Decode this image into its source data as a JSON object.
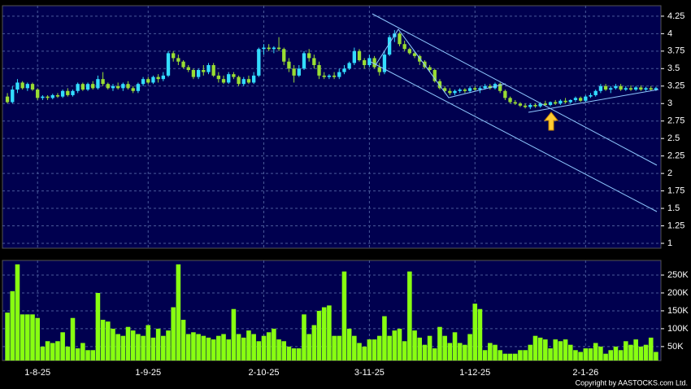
{
  "chart_data": {
    "type": "candlestick",
    "categories": [
      null,
      null,
      null,
      null,
      null,
      null,
      "1-8-25",
      null,
      null,
      null,
      null,
      null,
      null,
      null,
      null,
      null,
      null,
      null,
      null,
      null,
      null,
      null,
      null,
      null,
      null,
      null,
      null,
      null,
      "1-9-25",
      null,
      null,
      null,
      null,
      null,
      null,
      null,
      null,
      null,
      null,
      null,
      null,
      null,
      null,
      null,
      null,
      null,
      null,
      null,
      null,
      null,
      null,
      "2-10-25",
      null,
      null,
      null,
      null,
      null,
      null,
      null,
      null,
      null,
      null,
      null,
      null,
      null,
      null,
      null,
      null,
      null,
      null,
      null,
      null,
      "3-11-25",
      null,
      null,
      null,
      null,
      null,
      null,
      null,
      null,
      null,
      null,
      null,
      null,
      null,
      null,
      null,
      null,
      null,
      null,
      null,
      null,
      "1-12-25",
      null,
      null,
      null,
      null,
      null,
      null,
      null,
      null,
      null,
      null,
      null,
      null,
      null,
      null,
      null,
      null,
      null,
      null,
      null,
      null,
      null,
      "2-1-26",
      null,
      null,
      null,
      null,
      null,
      null,
      null,
      null,
      null,
      null,
      null,
      null,
      null,
      null
    ],
    "candles": [
      [
        3.1,
        3.15,
        3.0,
        3.02
      ],
      [
        3.02,
        3.25,
        3.0,
        3.2
      ],
      [
        3.2,
        3.35,
        3.15,
        3.3
      ],
      [
        3.3,
        3.32,
        3.2,
        3.22
      ],
      [
        3.22,
        3.3,
        3.18,
        3.28
      ],
      [
        3.28,
        3.3,
        3.18,
        3.2
      ],
      [
        3.2,
        3.22,
        3.05,
        3.08
      ],
      [
        3.08,
        3.12,
        3.05,
        3.1
      ],
      [
        3.1,
        3.12,
        3.05,
        3.08
      ],
      [
        3.08,
        3.14,
        3.06,
        3.12
      ],
      [
        3.12,
        3.15,
        3.08,
        3.1
      ],
      [
        3.1,
        3.2,
        3.08,
        3.18
      ],
      [
        3.18,
        3.22,
        3.1,
        3.12
      ],
      [
        3.12,
        3.2,
        3.1,
        3.18
      ],
      [
        3.18,
        3.3,
        3.15,
        3.28
      ],
      [
        3.28,
        3.3,
        3.18,
        3.2
      ],
      [
        3.2,
        3.3,
        3.18,
        3.28
      ],
      [
        3.28,
        3.32,
        3.2,
        3.22
      ],
      [
        3.22,
        3.4,
        3.2,
        3.35
      ],
      [
        3.35,
        3.45,
        3.25,
        3.28
      ],
      [
        3.28,
        3.3,
        3.2,
        3.22
      ],
      [
        3.22,
        3.28,
        3.18,
        3.25
      ],
      [
        3.25,
        3.3,
        3.2,
        3.22
      ],
      [
        3.22,
        3.3,
        3.18,
        3.28
      ],
      [
        3.28,
        3.32,
        3.2,
        3.22
      ],
      [
        3.22,
        3.25,
        3.15,
        3.18
      ],
      [
        3.18,
        3.3,
        3.15,
        3.28
      ],
      [
        3.28,
        3.38,
        3.25,
        3.35
      ],
      [
        3.35,
        3.38,
        3.28,
        3.3
      ],
      [
        3.3,
        3.4,
        3.28,
        3.38
      ],
      [
        3.38,
        3.42,
        3.3,
        3.35
      ],
      [
        3.35,
        3.45,
        3.32,
        3.4
      ],
      [
        3.4,
        3.75,
        3.38,
        3.72
      ],
      [
        3.72,
        3.75,
        3.6,
        3.65
      ],
      [
        3.65,
        3.7,
        3.55,
        3.6
      ],
      [
        3.6,
        3.62,
        3.5,
        3.52
      ],
      [
        3.52,
        3.55,
        3.45,
        3.48
      ],
      [
        3.48,
        3.5,
        3.35,
        3.38
      ],
      [
        3.38,
        3.5,
        3.35,
        3.48
      ],
      [
        3.48,
        3.55,
        3.4,
        3.45
      ],
      [
        3.45,
        3.58,
        3.42,
        3.55
      ],
      [
        3.55,
        3.58,
        3.38,
        3.4
      ],
      [
        3.4,
        3.45,
        3.3,
        3.35
      ],
      [
        3.35,
        3.4,
        3.28,
        3.3
      ],
      [
        3.3,
        3.45,
        3.28,
        3.42
      ],
      [
        3.42,
        3.45,
        3.35,
        3.38
      ],
      [
        3.38,
        3.4,
        3.25,
        3.28
      ],
      [
        3.28,
        3.38,
        3.25,
        3.35
      ],
      [
        3.35,
        3.4,
        3.28,
        3.3
      ],
      [
        3.3,
        3.45,
        3.28,
        3.4
      ],
      [
        3.4,
        3.8,
        3.38,
        3.78
      ],
      [
        3.78,
        3.85,
        3.7,
        3.8
      ],
      [
        3.8,
        3.85,
        3.75,
        3.78
      ],
      [
        3.78,
        3.82,
        3.72,
        3.8
      ],
      [
        3.8,
        3.95,
        3.75,
        3.78
      ],
      [
        3.78,
        3.8,
        3.55,
        3.6
      ],
      [
        3.6,
        3.65,
        3.45,
        3.5
      ],
      [
        3.5,
        3.55,
        3.3,
        3.4
      ],
      [
        3.4,
        3.55,
        3.38,
        3.5
      ],
      [
        3.5,
        3.75,
        3.48,
        3.72
      ],
      [
        3.72,
        3.78,
        3.6,
        3.65
      ],
      [
        3.65,
        3.7,
        3.5,
        3.55
      ],
      [
        3.55,
        3.6,
        3.35,
        3.4
      ],
      [
        3.4,
        3.45,
        3.35,
        3.38
      ],
      [
        3.38,
        3.42,
        3.35,
        3.4
      ],
      [
        3.4,
        3.45,
        3.35,
        3.38
      ],
      [
        3.38,
        3.5,
        3.35,
        3.45
      ],
      [
        3.45,
        3.55,
        3.42,
        3.5
      ],
      [
        3.5,
        3.6,
        3.48,
        3.58
      ],
      [
        3.58,
        3.8,
        3.55,
        3.75
      ],
      [
        3.75,
        3.78,
        3.6,
        3.62
      ],
      [
        3.62,
        3.65,
        3.5,
        3.55
      ],
      [
        3.55,
        3.7,
        3.52,
        3.65
      ],
      [
        3.65,
        3.68,
        3.5,
        3.52
      ],
      [
        3.52,
        3.58,
        3.4,
        3.45
      ],
      [
        3.45,
        3.75,
        3.42,
        3.7
      ],
      [
        3.7,
        3.98,
        3.68,
        3.95
      ],
      [
        3.95,
        4.05,
        3.88,
        4.0
      ],
      [
        4.0,
        4.02,
        3.82,
        3.85
      ],
      [
        3.85,
        3.9,
        3.75,
        3.78
      ],
      [
        3.78,
        3.8,
        3.7,
        3.72
      ],
      [
        3.72,
        3.75,
        3.65,
        3.68
      ],
      [
        3.68,
        3.7,
        3.55,
        3.6
      ],
      [
        3.6,
        3.62,
        3.5,
        3.52
      ],
      [
        3.52,
        3.55,
        3.45,
        3.48
      ],
      [
        3.48,
        3.5,
        3.3,
        3.32
      ],
      [
        3.32,
        3.35,
        3.2,
        3.22
      ],
      [
        3.22,
        3.25,
        3.15,
        3.18
      ],
      [
        3.18,
        3.22,
        3.12,
        3.15
      ],
      [
        3.15,
        3.2,
        3.12,
        3.18
      ],
      [
        3.18,
        3.22,
        3.15,
        3.2
      ],
      [
        3.2,
        3.22,
        3.15,
        3.18
      ],
      [
        3.18,
        3.25,
        3.15,
        3.22
      ],
      [
        3.22,
        3.25,
        3.18,
        3.2
      ],
      [
        3.2,
        3.25,
        3.15,
        3.22
      ],
      [
        3.22,
        3.28,
        3.2,
        3.25
      ],
      [
        3.25,
        3.28,
        3.2,
        3.22
      ],
      [
        3.22,
        3.3,
        3.2,
        3.28
      ],
      [
        3.28,
        3.3,
        3.15,
        3.18
      ],
      [
        3.18,
        3.2,
        3.05,
        3.08
      ],
      [
        3.08,
        3.1,
        3.0,
        3.02
      ],
      [
        3.02,
        3.05,
        2.98,
        3.0
      ],
      [
        3.0,
        3.02,
        2.95,
        2.97
      ],
      [
        2.97,
        3.0,
        2.93,
        2.95
      ],
      [
        2.95,
        3.0,
        2.92,
        2.98
      ],
      [
        2.98,
        3.0,
        2.94,
        2.96
      ],
      [
        2.96,
        3.02,
        2.94,
        3.0
      ],
      [
        3.0,
        3.04,
        2.96,
        2.98
      ],
      [
        2.98,
        3.03,
        2.96,
        3.02
      ],
      [
        3.02,
        3.05,
        2.98,
        3.0
      ],
      [
        3.0,
        3.06,
        2.98,
        3.04
      ],
      [
        3.04,
        3.08,
        3.0,
        3.02
      ],
      [
        3.02,
        3.06,
        3.0,
        3.05
      ],
      [
        3.05,
        3.1,
        3.02,
        3.08
      ],
      [
        3.08,
        3.1,
        3.02,
        3.04
      ],
      [
        3.04,
        3.12,
        3.02,
        3.1
      ],
      [
        3.1,
        3.15,
        3.08,
        3.12
      ],
      [
        3.12,
        3.2,
        3.1,
        3.18
      ],
      [
        3.18,
        3.28,
        3.15,
        3.25
      ],
      [
        3.25,
        3.28,
        3.18,
        3.2
      ],
      [
        3.2,
        3.25,
        3.15,
        3.22
      ],
      [
        3.22,
        3.28,
        3.2,
        3.25
      ],
      [
        3.25,
        3.28,
        3.18,
        3.2
      ],
      [
        3.2,
        3.25,
        3.18,
        3.22
      ],
      [
        3.22,
        3.26,
        3.18,
        3.2
      ],
      [
        3.2,
        3.25,
        3.18,
        3.23
      ],
      [
        3.23,
        3.26,
        3.18,
        3.2
      ],
      [
        3.2,
        3.24,
        3.18,
        3.22
      ],
      [
        3.22,
        3.25,
        3.18,
        3.2
      ],
      [
        3.2,
        3.24,
        3.18,
        3.22
      ]
    ],
    "volume": [
      145000,
      205000,
      280000,
      140000,
      140000,
      140000,
      130000,
      50000,
      65000,
      60000,
      65000,
      90000,
      50000,
      130000,
      45000,
      60000,
      40000,
      40000,
      200000,
      125000,
      120000,
      100000,
      85000,
      80000,
      105000,
      95000,
      85000,
      80000,
      110000,
      75000,
      100000,
      80000,
      95000,
      160000,
      280000,
      125000,
      85000,
      90000,
      85000,
      80000,
      75000,
      70000,
      80000,
      85000,
      70000,
      155000,
      85000,
      75000,
      95000,
      85000,
      65000,
      80000,
      90000,
      100000,
      70000,
      65000,
      50000,
      45000,
      45000,
      140000,
      85000,
      110000,
      150000,
      160000,
      165000,
      80000,
      80000,
      260000,
      100000,
      80000,
      60000,
      50000,
      70000,
      70000,
      80000,
      135000,
      80000,
      95000,
      100000,
      65000,
      260000,
      95000,
      75000,
      55000,
      80000,
      45000,
      105000,
      80000,
      60000,
      90000,
      60000,
      55000,
      85000,
      170000,
      155000,
      40000,
      60000,
      55000,
      40000,
      30000,
      30000,
      30000,
      40000,
      40000,
      55000,
      80000,
      75000,
      70000,
      45000,
      70000,
      65000,
      70000,
      55000,
      40000,
      35000,
      45000,
      45000,
      60000,
      50000,
      30000,
      40000,
      50000,
      40000,
      65000,
      55000,
      70000,
      50000,
      55000,
      75000,
      35000
    ],
    "ylim": [
      0.93,
      4.4
    ],
    "yticks": [
      1,
      1.25,
      1.5,
      1.75,
      2,
      2.25,
      2.5,
      2.75,
      3,
      3.25,
      3.5,
      3.75,
      4,
      4.25
    ],
    "volume_ylim": [
      11000,
      291000
    ],
    "volume_yticks": [
      {
        "value": 50000,
        "label": "50K"
      },
      {
        "value": 100000,
        "label": "100K"
      },
      {
        "value": 150000,
        "label": "150K"
      },
      {
        "value": 200000,
        "label": "200K"
      },
      {
        "value": 250000,
        "label": "250K"
      }
    ],
    "up_color": "#33ddff",
    "down_color": "#99dd33",
    "volume_color": "#88ff11",
    "grid": true,
    "footer": "Copyright by AASTOCKS.com Ltd."
  }
}
